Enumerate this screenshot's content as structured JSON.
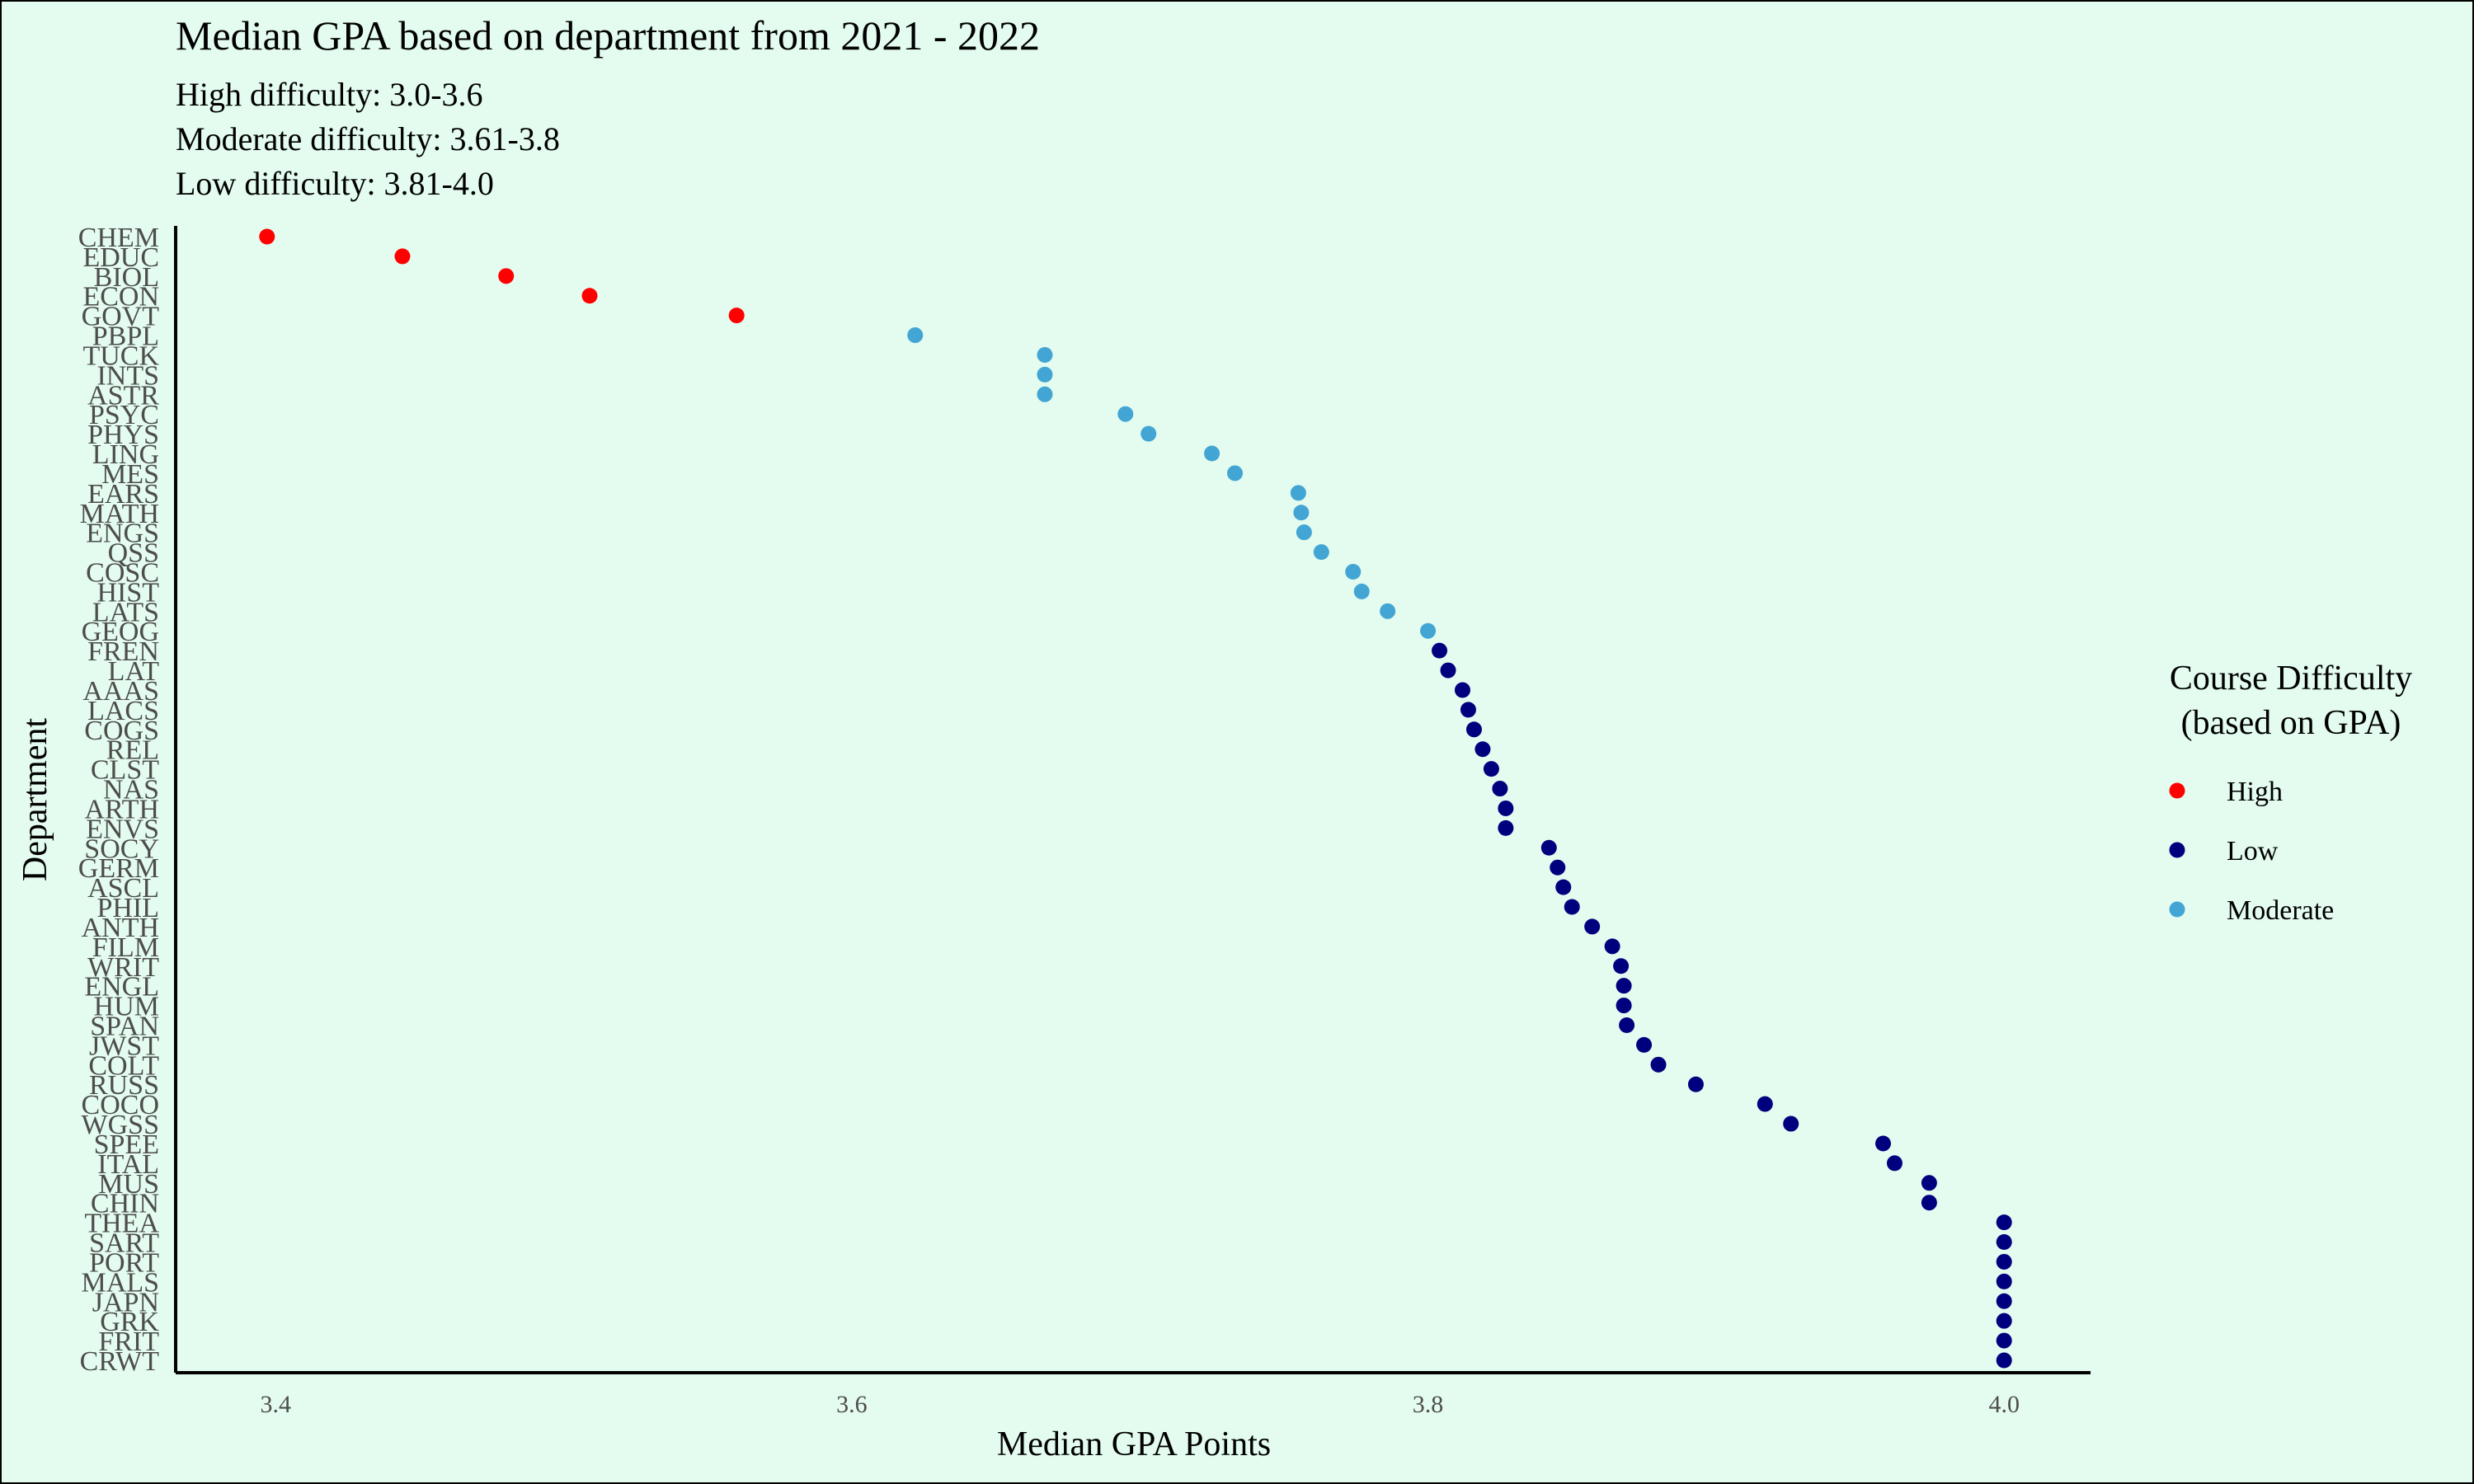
{
  "chart_data": {
    "type": "scatter",
    "title": "Median GPA based on department from 2021 - 2022",
    "subtitle": [
      "High difficulty: 3.0-3.6",
      "Moderate difficulty: 3.61-3.8",
      "Low difficulty: 3.81-4.0"
    ],
    "xlabel": "Median GPA Points",
    "ylabel": "Department",
    "xlim": [
      3.365,
      4.03
    ],
    "xticks": [
      {
        "value": 3.4,
        "label": "3.4"
      },
      {
        "value": 3.6,
        "label": "3.6"
      },
      {
        "value": 3.8,
        "label": "3.8"
      },
      {
        "value": 4.0,
        "label": "4.0"
      }
    ],
    "grid": false,
    "legend": {
      "title": [
        "Course Difficulty",
        "(based on GPA)"
      ],
      "placement": "right",
      "entries": [
        {
          "label": "High",
          "color": "#ff0000"
        },
        {
          "label": "Low",
          "color": "#00007f"
        },
        {
          "label": "Moderate",
          "color": "#42a5d4"
        }
      ]
    },
    "colors": {
      "High": "#ff0000",
      "Low": "#00007f",
      "Moderate": "#42a5d4"
    },
    "points": [
      {
        "dept": "CHEM",
        "gpa": 3.397,
        "difficulty": "High"
      },
      {
        "dept": "EDUC",
        "gpa": 3.444,
        "difficulty": "High"
      },
      {
        "dept": "BIOL",
        "gpa": 3.48,
        "difficulty": "High"
      },
      {
        "dept": "ECON",
        "gpa": 3.509,
        "difficulty": "High"
      },
      {
        "dept": "GOVT",
        "gpa": 3.56,
        "difficulty": "High"
      },
      {
        "dept": "PBPL",
        "gpa": 3.622,
        "difficulty": "Moderate"
      },
      {
        "dept": "TUCK",
        "gpa": 3.667,
        "difficulty": "Moderate"
      },
      {
        "dept": "INTS",
        "gpa": 3.667,
        "difficulty": "Moderate"
      },
      {
        "dept": "ASTR",
        "gpa": 3.667,
        "difficulty": "Moderate"
      },
      {
        "dept": "PSYC",
        "gpa": 3.695,
        "difficulty": "Moderate"
      },
      {
        "dept": "PHYS",
        "gpa": 3.703,
        "difficulty": "Moderate"
      },
      {
        "dept": "LING",
        "gpa": 3.725,
        "difficulty": "Moderate"
      },
      {
        "dept": "MES",
        "gpa": 3.733,
        "difficulty": "Moderate"
      },
      {
        "dept": "EARS",
        "gpa": 3.755,
        "difficulty": "Moderate"
      },
      {
        "dept": "MATH",
        "gpa": 3.756,
        "difficulty": "Moderate"
      },
      {
        "dept": "ENGS",
        "gpa": 3.757,
        "difficulty": "Moderate"
      },
      {
        "dept": "QSS",
        "gpa": 3.763,
        "difficulty": "Moderate"
      },
      {
        "dept": "COSC",
        "gpa": 3.774,
        "difficulty": "Moderate"
      },
      {
        "dept": "HIST",
        "gpa": 3.777,
        "difficulty": "Moderate"
      },
      {
        "dept": "LATS",
        "gpa": 3.786,
        "difficulty": "Moderate"
      },
      {
        "dept": "GEOG",
        "gpa": 3.8,
        "difficulty": "Moderate"
      },
      {
        "dept": "FREN",
        "gpa": 3.804,
        "difficulty": "Low"
      },
      {
        "dept": "LAT",
        "gpa": 3.807,
        "difficulty": "Low"
      },
      {
        "dept": "AAAS",
        "gpa": 3.812,
        "difficulty": "Low"
      },
      {
        "dept": "LACS",
        "gpa": 3.814,
        "difficulty": "Low"
      },
      {
        "dept": "COGS",
        "gpa": 3.816,
        "difficulty": "Low"
      },
      {
        "dept": "REL",
        "gpa": 3.819,
        "difficulty": "Low"
      },
      {
        "dept": "CLST",
        "gpa": 3.822,
        "difficulty": "Low"
      },
      {
        "dept": "NAS",
        "gpa": 3.825,
        "difficulty": "Low"
      },
      {
        "dept": "ARTH",
        "gpa": 3.827,
        "difficulty": "Low"
      },
      {
        "dept": "ENVS",
        "gpa": 3.827,
        "difficulty": "Low"
      },
      {
        "dept": "SOCY",
        "gpa": 3.842,
        "difficulty": "Low"
      },
      {
        "dept": "GERM",
        "gpa": 3.845,
        "difficulty": "Low"
      },
      {
        "dept": "ASCL",
        "gpa": 3.847,
        "difficulty": "Low"
      },
      {
        "dept": "PHIL",
        "gpa": 3.85,
        "difficulty": "Low"
      },
      {
        "dept": "ANTH",
        "gpa": 3.857,
        "difficulty": "Low"
      },
      {
        "dept": "FILM",
        "gpa": 3.864,
        "difficulty": "Low"
      },
      {
        "dept": "WRIT",
        "gpa": 3.867,
        "difficulty": "Low"
      },
      {
        "dept": "ENGL",
        "gpa": 3.868,
        "difficulty": "Low"
      },
      {
        "dept": "HUM",
        "gpa": 3.868,
        "difficulty": "Low"
      },
      {
        "dept": "SPAN",
        "gpa": 3.869,
        "difficulty": "Low"
      },
      {
        "dept": "JWST",
        "gpa": 3.875,
        "difficulty": "Low"
      },
      {
        "dept": "COLT",
        "gpa": 3.88,
        "difficulty": "Low"
      },
      {
        "dept": "RUSS",
        "gpa": 3.893,
        "difficulty": "Low"
      },
      {
        "dept": "COCO",
        "gpa": 3.917,
        "difficulty": "Low"
      },
      {
        "dept": "WGSS",
        "gpa": 3.926,
        "difficulty": "Low"
      },
      {
        "dept": "SPEE",
        "gpa": 3.958,
        "difficulty": "Low"
      },
      {
        "dept": "ITAL",
        "gpa": 3.962,
        "difficulty": "Low"
      },
      {
        "dept": "MUS",
        "gpa": 3.974,
        "difficulty": "Low"
      },
      {
        "dept": "CHIN",
        "gpa": 3.974,
        "difficulty": "Low"
      },
      {
        "dept": "THEA",
        "gpa": 4.0,
        "difficulty": "Low"
      },
      {
        "dept": "SART",
        "gpa": 4.0,
        "difficulty": "Low"
      },
      {
        "dept": "PORT",
        "gpa": 4.0,
        "difficulty": "Low"
      },
      {
        "dept": "MALS",
        "gpa": 4.0,
        "difficulty": "Low"
      },
      {
        "dept": "JAPN",
        "gpa": 4.0,
        "difficulty": "Low"
      },
      {
        "dept": "GRK",
        "gpa": 4.0,
        "difficulty": "Low"
      },
      {
        "dept": "FRIT",
        "gpa": 4.0,
        "difficulty": "Low"
      },
      {
        "dept": "CRWT",
        "gpa": 4.0,
        "difficulty": "Low"
      }
    ]
  }
}
